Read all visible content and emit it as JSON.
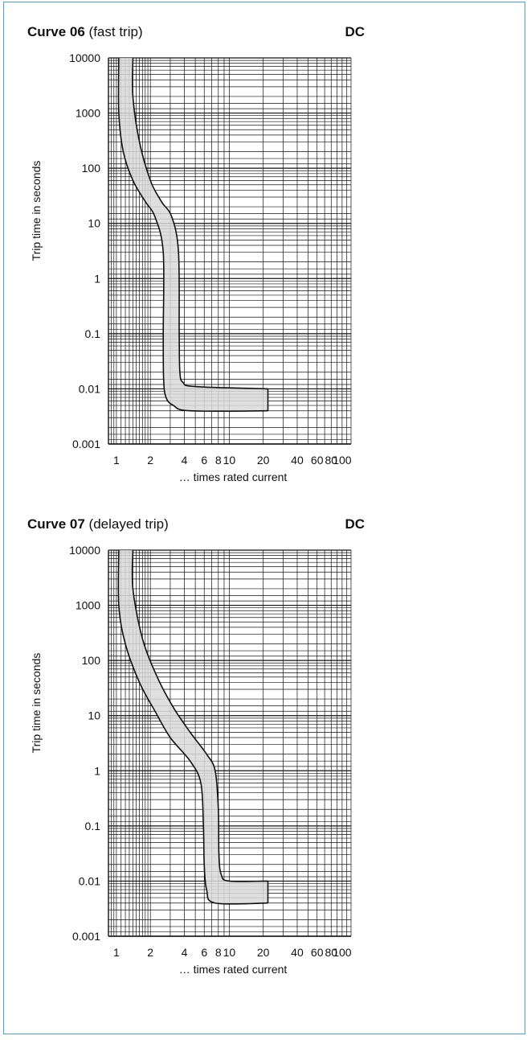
{
  "charts": [
    {
      "title_bold": "Curve 06",
      "title_rest": " (fast trip)",
      "label_right": "DC",
      "xlabel": "… times rated current",
      "ylabel": "Trip time in seconds",
      "x_ticks": [
        "1",
        "2",
        "4",
        "6",
        "8",
        "10",
        "20",
        "40",
        "60",
        "80",
        "100"
      ],
      "y_ticks": [
        "10000",
        "1000",
        "100",
        "10",
        "1",
        "0.1",
        "0.01",
        "0.001"
      ]
    },
    {
      "title_bold": "Curve 07",
      "title_rest": " (delayed trip)",
      "label_right": "DC",
      "xlabel": "… times rated current",
      "ylabel": "Trip time in seconds",
      "x_ticks": [
        "1",
        "2",
        "4",
        "6",
        "8",
        "10",
        "20",
        "40",
        "60",
        "80",
        "100"
      ],
      "y_ticks": [
        "10000",
        "1000",
        "100",
        "10",
        "1",
        "0.1",
        "0.01",
        "0.001"
      ]
    }
  ],
  "chart_data": [
    {
      "type": "area",
      "title": "Curve 06 (fast trip)",
      "xlabel": "… times rated current",
      "ylabel": "Trip time in seconds",
      "x_scale": "log",
      "y_scale": "log",
      "xlim": [
        0.85,
        120
      ],
      "ylim": [
        0.001,
        10000
      ],
      "grid": true,
      "annotation": "DC",
      "band_fill": "#d9d9d9",
      "series": [
        {
          "values": [
            [
              1.05,
              10000
            ],
            [
              1.05,
              1000
            ],
            [
              1.15,
              200
            ],
            [
              1.4,
              60
            ],
            [
              1.8,
              25
            ],
            [
              2.2,
              13
            ],
            [
              2.6,
              3
            ],
            [
              2.6,
              0.1
            ],
            [
              2.62,
              0.015
            ],
            [
              2.75,
              0.007
            ],
            [
              3.2,
              0.005
            ],
            [
              4.5,
              0.004
            ],
            [
              22,
              0.004
            ]
          ]
        },
        {
          "values": [
            [
              1.4,
              10000
            ],
            [
              1.4,
              2000
            ],
            [
              1.6,
              300
            ],
            [
              2,
              60
            ],
            [
              2.5,
              25
            ],
            [
              3.1,
              13
            ],
            [
              3.55,
              3
            ],
            [
              3.6,
              0.1
            ],
            [
              3.65,
              0.02
            ],
            [
              3.9,
              0.013
            ],
            [
              5,
              0.011
            ],
            [
              22,
              0.01
            ]
          ]
        }
      ]
    },
    {
      "type": "area",
      "title": "Curve 07 (delayed trip)",
      "xlabel": "… times rated current",
      "ylabel": "Trip time in seconds",
      "x_scale": "log",
      "y_scale": "log",
      "xlim": [
        0.85,
        120
      ],
      "ylim": [
        0.001,
        10000
      ],
      "grid": true,
      "annotation": "DC",
      "band_fill": "#d9d9d9",
      "series": [
        {
          "values": [
            [
              1.05,
              10000
            ],
            [
              1.05,
              1000
            ],
            [
              1.2,
              200
            ],
            [
              1.6,
              40
            ],
            [
              2.2,
              12
            ],
            [
              3,
              4
            ],
            [
              4.5,
              1.5
            ],
            [
              5.6,
              0.6
            ],
            [
              5.9,
              0.1
            ],
            [
              6,
              0.02
            ],
            [
              6.3,
              0.007
            ],
            [
              7.5,
              0.004
            ],
            [
              22,
              0.004
            ]
          ]
        },
        {
          "values": [
            [
              1.4,
              10000
            ],
            [
              1.4,
              2000
            ],
            [
              1.7,
              250
            ],
            [
              2.3,
              50
            ],
            [
              3.2,
              14
            ],
            [
              4.5,
              5
            ],
            [
              6.3,
              2
            ],
            [
              7.5,
              1
            ],
            [
              8,
              0.2
            ],
            [
              8.1,
              0.03
            ],
            [
              8.5,
              0.013
            ],
            [
              10,
              0.01
            ],
            [
              22,
              0.01
            ]
          ]
        }
      ]
    }
  ]
}
